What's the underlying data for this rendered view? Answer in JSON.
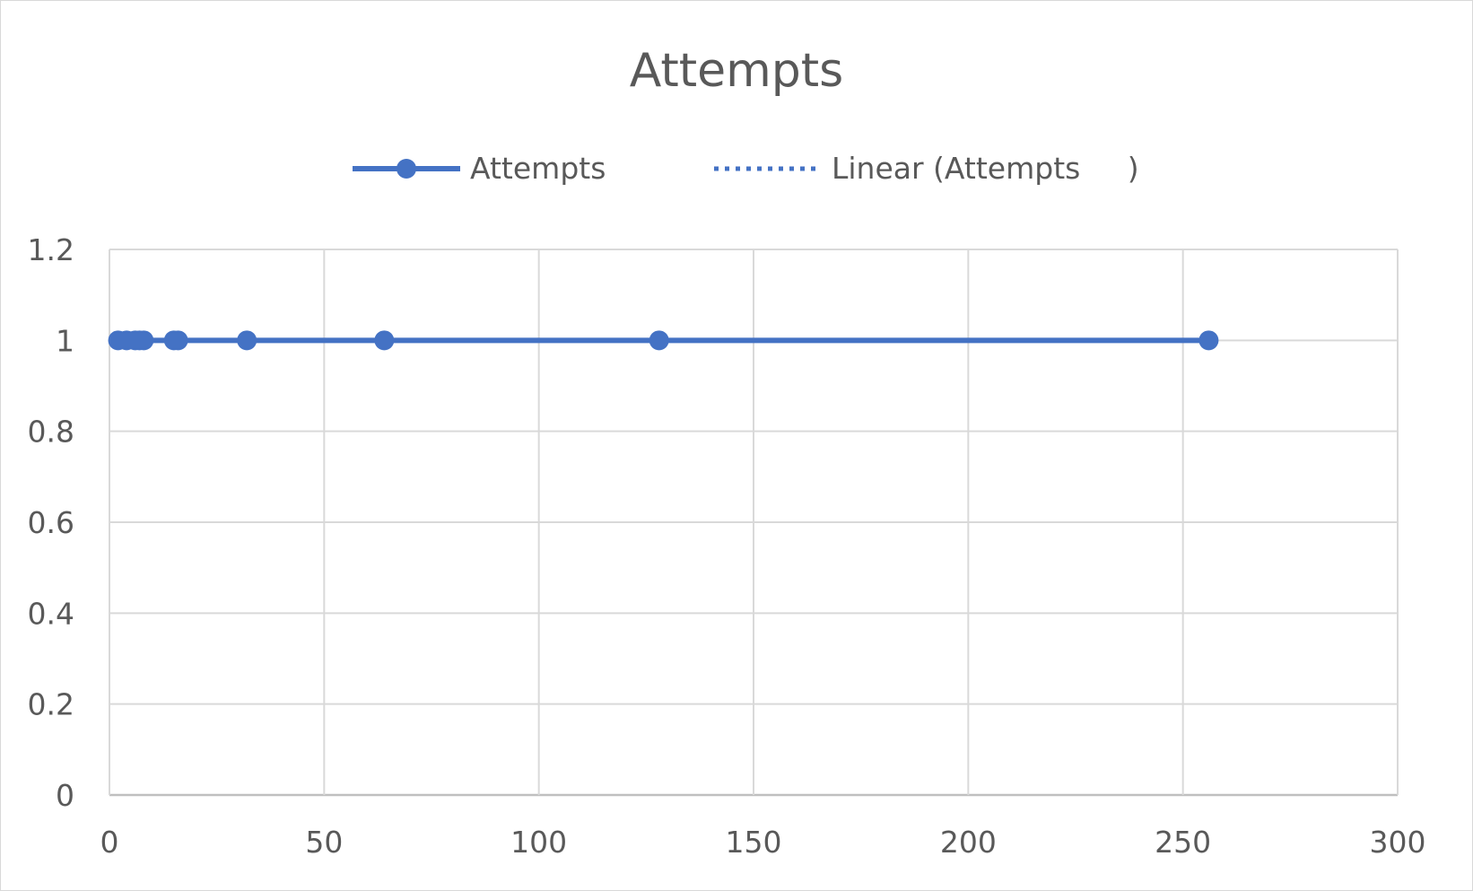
{
  "chart_data": {
    "type": "scatter",
    "title": "Attempts",
    "xlabel": "",
    "ylabel": "",
    "xlim": [
      0,
      300
    ],
    "ylim": [
      0,
      1.2
    ],
    "x_ticks": [
      "0",
      "50",
      "100",
      "150",
      "200",
      "250",
      "300"
    ],
    "y_ticks": [
      "0",
      "0.2",
      "0.4",
      "0.6",
      "0.8",
      "1",
      "1.2"
    ],
    "grid": true,
    "legend_position": "top",
    "series": [
      {
        "name": "Attempts",
        "style": "line-with-markers",
        "color": "#4472c4",
        "x": [
          2,
          4,
          6,
          7,
          8,
          15,
          16,
          32,
          64,
          128,
          256
        ],
        "y": [
          1,
          1,
          1,
          1,
          1,
          1,
          1,
          1,
          1,
          1,
          1
        ]
      }
    ],
    "trendline": {
      "name": "Linear (Attempts     )",
      "type": "linear",
      "style": "dotted",
      "color": "#4472c4"
    }
  }
}
